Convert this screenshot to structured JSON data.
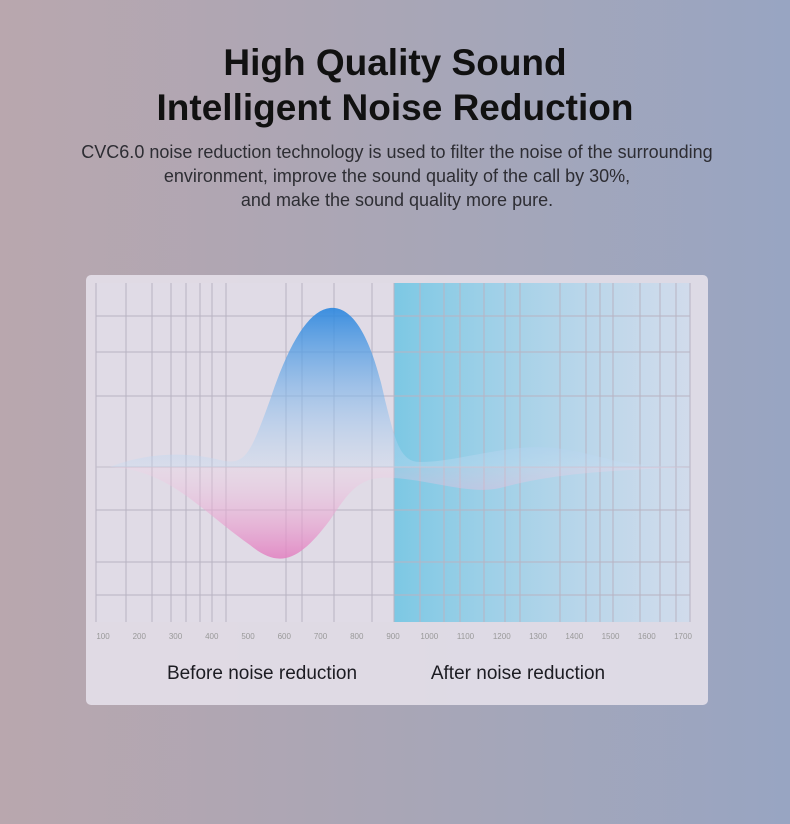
{
  "header": {
    "title_lines": [
      "High Quality Sound",
      "Intelligent Noise Reduction"
    ],
    "description_lines": [
      "CVC6.0 noise reduction technology is used to filter the noise of the surrounding",
      "environment, improve the sound quality of the call by 30%,",
      "and make the sound quality more pure."
    ]
  },
  "figure": {
    "axis_labels": [
      "100",
      "200",
      "300",
      "400",
      "500",
      "600",
      "700",
      "800",
      "900",
      "1000",
      "1100",
      "1200",
      "1300",
      "1400",
      "1500",
      "1600",
      "1700"
    ]
  },
  "captions": {
    "before": "Before noise reduction",
    "after": "After noise reduction"
  }
}
